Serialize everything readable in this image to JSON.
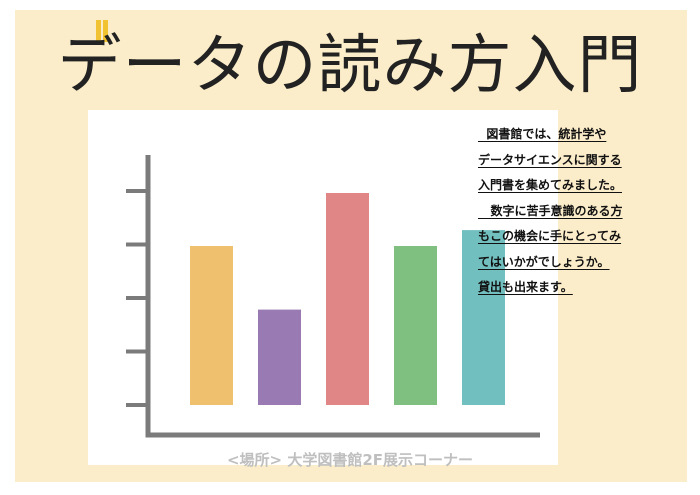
{
  "poster": {
    "title": "データの読み方入門",
    "notice_lines": [
      "  図書館では、統計学や",
      "データサイエンスに関する",
      "入門書を集めてみました。",
      "   数字に苦手意識のある方",
      "もこの機会に手にとってみ",
      "てはいかがでしょうか。",
      "貸出も出来ます。"
    ],
    "location": "<場所> 大学図書館2F展示コーナー"
  },
  "colors": {
    "background": "#fbedc9",
    "accent": "#f1c232",
    "axis": "#7b7b7b",
    "location_text": "#bfbfbf"
  },
  "chart_data": {
    "type": "bar",
    "values": [
      30,
      18,
      40,
      30,
      33
    ],
    "colors": [
      "#efc06e",
      "#9a7ab2",
      "#e08686",
      "#7fbf7f",
      "#72bfbf"
    ],
    "ylim": [
      0,
      50
    ],
    "y_ticks": 5,
    "grid": false,
    "legend": "none"
  }
}
